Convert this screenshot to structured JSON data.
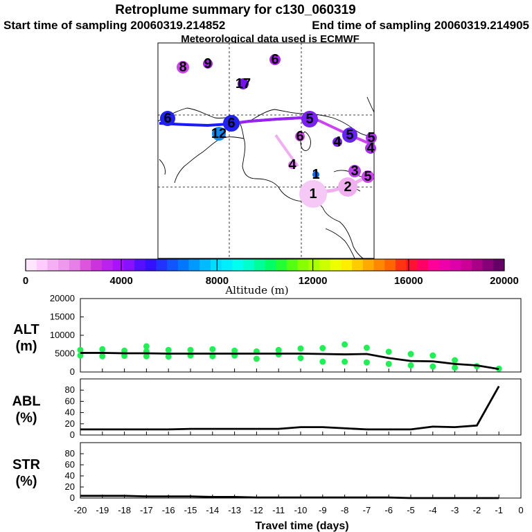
{
  "header": {
    "title": "Retroplume summary for c130_060319",
    "start_label": "Start time of sampling 20060319.214852",
    "end_label": "End time of sampling 20060319.214905",
    "met_label": "Meteorological data used is ECMWF"
  },
  "map": {
    "particle_labels": [
      "8",
      "9",
      "6",
      "17",
      "6",
      "6",
      "12",
      "5",
      "6",
      "5",
      "4",
      "5",
      "4",
      "4",
      "1",
      "3",
      "2",
      "1",
      "5"
    ]
  },
  "colorbar": {
    "ticks": [
      "0",
      "4000",
      "8000",
      "12000",
      "16000",
      "20000"
    ],
    "label": "Altitude (m)",
    "colors": [
      "#ffe6ff",
      "#ffccff",
      "#f5b0f5",
      "#ee99ee",
      "#e680e6",
      "#dd55dd",
      "#cc33dd",
      "#bb22ee",
      "#aa11ff",
      "#8811ff",
      "#5511ff",
      "#3311ff",
      "#2233ff",
      "#1155ff",
      "#0077ff",
      "#0099ff",
      "#00bbff",
      "#00ddff",
      "#00eeff",
      "#00ffee",
      "#00ffcc",
      "#00ff99",
      "#00ff66",
      "#22ff33",
      "#55ff11",
      "#88ff00",
      "#aaff00",
      "#ccff00",
      "#eeff00",
      "#ffee00",
      "#ffcc00",
      "#ffaa00",
      "#ff8800",
      "#ff6600",
      "#ff3311",
      "#ff1133",
      "#ff0066",
      "#ff0099",
      "#ee00aa",
      "#dd00aa",
      "#cc0099",
      "#aa0088",
      "#880077",
      "#660066"
    ]
  },
  "chart_data": [
    {
      "type": "line",
      "name": "ALT",
      "ylabel_line1": "ALT",
      "ylabel_line2": "(m)",
      "yticks": [
        "20000",
        "15000",
        "10000",
        "5000",
        "0"
      ],
      "ylim": [
        0,
        20000
      ],
      "x": [
        -20,
        -19,
        -18,
        -17,
        -16,
        -15,
        -14,
        -13,
        -12,
        -11,
        -10,
        -9,
        -8,
        -7,
        -6,
        -5,
        -4,
        -3,
        -2,
        -1
      ],
      "values": [
        5200,
        5200,
        5100,
        5100,
        5000,
        5000,
        5000,
        5000,
        5000,
        5000,
        5000,
        4900,
        4800,
        4900,
        3800,
        3000,
        2900,
        2200,
        1800,
        800
      ],
      "scatter_color": "#22ee55",
      "scatter_points": [
        [
          -20,
          6000
        ],
        [
          -20,
          4500
        ],
        [
          -19,
          6200
        ],
        [
          -19,
          4300
        ],
        [
          -18,
          5800
        ],
        [
          -18,
          4400
        ],
        [
          -17,
          7000
        ],
        [
          -17,
          5600
        ],
        [
          -17,
          4300
        ],
        [
          -16,
          6000
        ],
        [
          -16,
          4200
        ],
        [
          -15,
          6000
        ],
        [
          -15,
          4500
        ],
        [
          -14,
          6200
        ],
        [
          -14,
          4300
        ],
        [
          -13,
          5800
        ],
        [
          -13,
          4500
        ],
        [
          -12,
          5600
        ],
        [
          -12,
          3600
        ],
        [
          -11,
          6000
        ],
        [
          -11,
          4800
        ],
        [
          -10,
          6400
        ],
        [
          -10,
          3800
        ],
        [
          -9,
          6500
        ],
        [
          -9,
          2800
        ],
        [
          -8,
          7500
        ],
        [
          -8,
          2800
        ],
        [
          -7,
          6600
        ],
        [
          -7,
          2600
        ],
        [
          -6,
          5500
        ],
        [
          -6,
          2200
        ],
        [
          -5,
          4900
        ],
        [
          -5,
          1800
        ],
        [
          -4,
          4500
        ],
        [
          -4,
          1500
        ],
        [
          -3,
          3200
        ],
        [
          -3,
          1200
        ],
        [
          -2,
          1600
        ],
        [
          -1,
          900
        ]
      ]
    },
    {
      "type": "line",
      "name": "ABL",
      "ylabel_line1": "ABL",
      "ylabel_line2": "(%)",
      "yticks": [
        "80",
        "60",
        "40",
        "20",
        "0"
      ],
      "ylim": [
        0,
        100
      ],
      "x": [
        -20,
        -19,
        -18,
        -17,
        -16,
        -15,
        -14,
        -13,
        -12,
        -11,
        -10,
        -9,
        -8,
        -7,
        -6,
        -5,
        -4,
        -3,
        -2,
        -1
      ],
      "values": [
        10,
        10,
        10,
        10,
        10,
        11,
        11,
        11,
        11,
        11,
        14,
        14,
        12,
        10,
        10,
        10,
        15,
        14,
        17,
        87
      ]
    },
    {
      "type": "line",
      "name": "STR",
      "ylabel_line1": "STR",
      "ylabel_line2": "(%)",
      "yticks": [
        "80",
        "60",
        "40",
        "20",
        "0"
      ],
      "ylim": [
        0,
        100
      ],
      "x": [
        -20,
        -19,
        -18,
        -17,
        -16,
        -15,
        -14,
        -13,
        -12,
        -11,
        -10,
        -9,
        -8,
        -7,
        -6,
        -5,
        -4,
        -3,
        -2,
        -1
      ],
      "values": [
        4,
        4,
        4,
        3,
        3,
        3,
        2,
        2,
        1,
        1,
        1,
        1,
        1,
        1,
        1,
        0,
        0,
        0,
        0,
        0
      ],
      "xlabel": "Travel time (days)",
      "xticks": [
        "-20",
        "-19",
        "-18",
        "-17",
        "-16",
        "-15",
        "-14",
        "-13",
        "-12",
        "-11",
        "-10",
        "-9",
        "-8",
        "-7",
        "-6",
        "-5",
        "-4",
        "-3",
        "-2",
        "-1",
        "0"
      ],
      "xlim": [
        -20,
        0
      ]
    }
  ]
}
